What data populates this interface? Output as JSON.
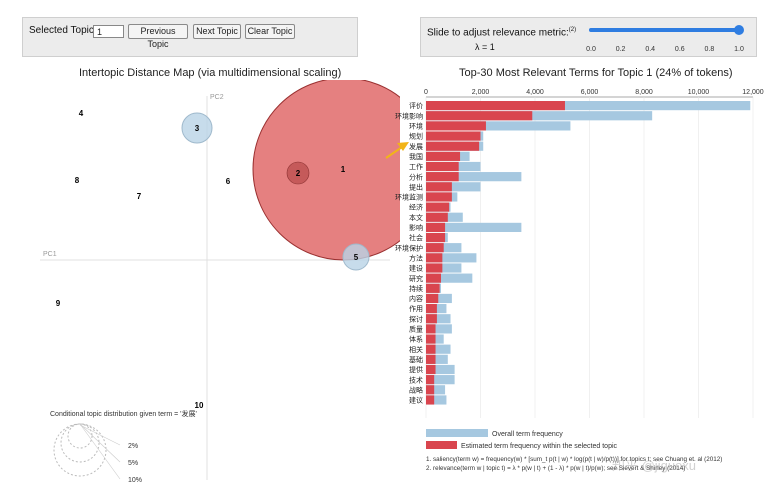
{
  "controls": {
    "selected_topic_label": "Selected Topic:",
    "selected_topic_value": "1",
    "prev_label": "Previous Topic",
    "next_label": "Next Topic",
    "clear_label": "Clear Topic",
    "slider_label": "Slide to adjust relevance metric:",
    "slider_footnote": "(2)",
    "lambda_text": "λ = 1",
    "lambda_value": 1,
    "slider_ticks": [
      "0.0",
      "0.2",
      "0.4",
      "0.6",
      "0.8",
      "1.0"
    ]
  },
  "map": {
    "title": "Intertopic Distance Map (via multidimensional scaling)",
    "pc1_label": "PC1",
    "pc2_label": "PC2",
    "topics": [
      {
        "id": "1",
        "selected": true
      },
      {
        "id": "2",
        "selected": false
      },
      {
        "id": "3",
        "selected": false
      },
      {
        "id": "4",
        "selected": false
      },
      {
        "id": "5",
        "selected": false
      },
      {
        "id": "6",
        "selected": false
      },
      {
        "id": "7",
        "selected": false
      },
      {
        "id": "8",
        "selected": false
      },
      {
        "id": "9",
        "selected": false
      },
      {
        "id": "10",
        "selected": false
      }
    ],
    "conditional_label": "Conditional topic distribution given term = '发展'",
    "size_legend": [
      "2%",
      "5%",
      "10%"
    ]
  },
  "chart_data": {
    "type": "bar",
    "title": "Top-30 Most Relevant Terms for Topic 1 (24% of tokens)",
    "xlim": [
      0,
      12000
    ],
    "x_ticks": [
      0,
      2000,
      4000,
      6000,
      8000,
      10000,
      12000
    ],
    "x_tick_labels": [
      "0",
      "2,000",
      "4,000",
      "6,000",
      "8,000",
      "10,000",
      "12,000"
    ],
    "categories": [
      "评价",
      "环境影响",
      "环境",
      "规划",
      "发展",
      "我国",
      "工作",
      "分析",
      "提出",
      "环境监测",
      "经济",
      "本文",
      "影响",
      "社会",
      "环境保护",
      "方法",
      "建设",
      "研究",
      "持续",
      "内容",
      "作用",
      "探讨",
      "质量",
      "体系",
      "相关",
      "基础",
      "提供",
      "技术",
      "战略",
      "建议"
    ],
    "series": [
      {
        "name": "Overall term frequency",
        "color": "#a6c8e0",
        "values": [
          11900,
          8300,
          5300,
          2100,
          2100,
          1600,
          2000,
          3500,
          2000,
          1150,
          900,
          1350,
          3500,
          800,
          1300,
          1850,
          1300,
          1700,
          550,
          950,
          750,
          900,
          950,
          650,
          900,
          800,
          1050,
          1050,
          700,
          750
        ]
      },
      {
        "name": "Estimated term frequency within the selected topic",
        "color": "#d9454e",
        "values": [
          5100,
          3900,
          2200,
          2000,
          1950,
          1250,
          1200,
          1200,
          950,
          950,
          850,
          800,
          700,
          700,
          650,
          600,
          600,
          550,
          500,
          450,
          400,
          400,
          350,
          350,
          350,
          350,
          350,
          300,
          300,
          300
        ]
      }
    ],
    "legend": [
      "Overall term frequency",
      "Estimated term frequency within the selected topic"
    ],
    "footnotes": [
      "1. saliency(term w) = frequency(w) * [sum_t p(t | w) * log(p(t | w)/p(t))] for topics t; see Chuang et. al (2012)",
      "2. relevance(term w | topic t) = λ * p(w | t) + (1 - λ) * p(w | t)/p(w); see Sievert & Shirley (2014)"
    ]
  },
  "watermark": "知乎 @jiguoxu"
}
